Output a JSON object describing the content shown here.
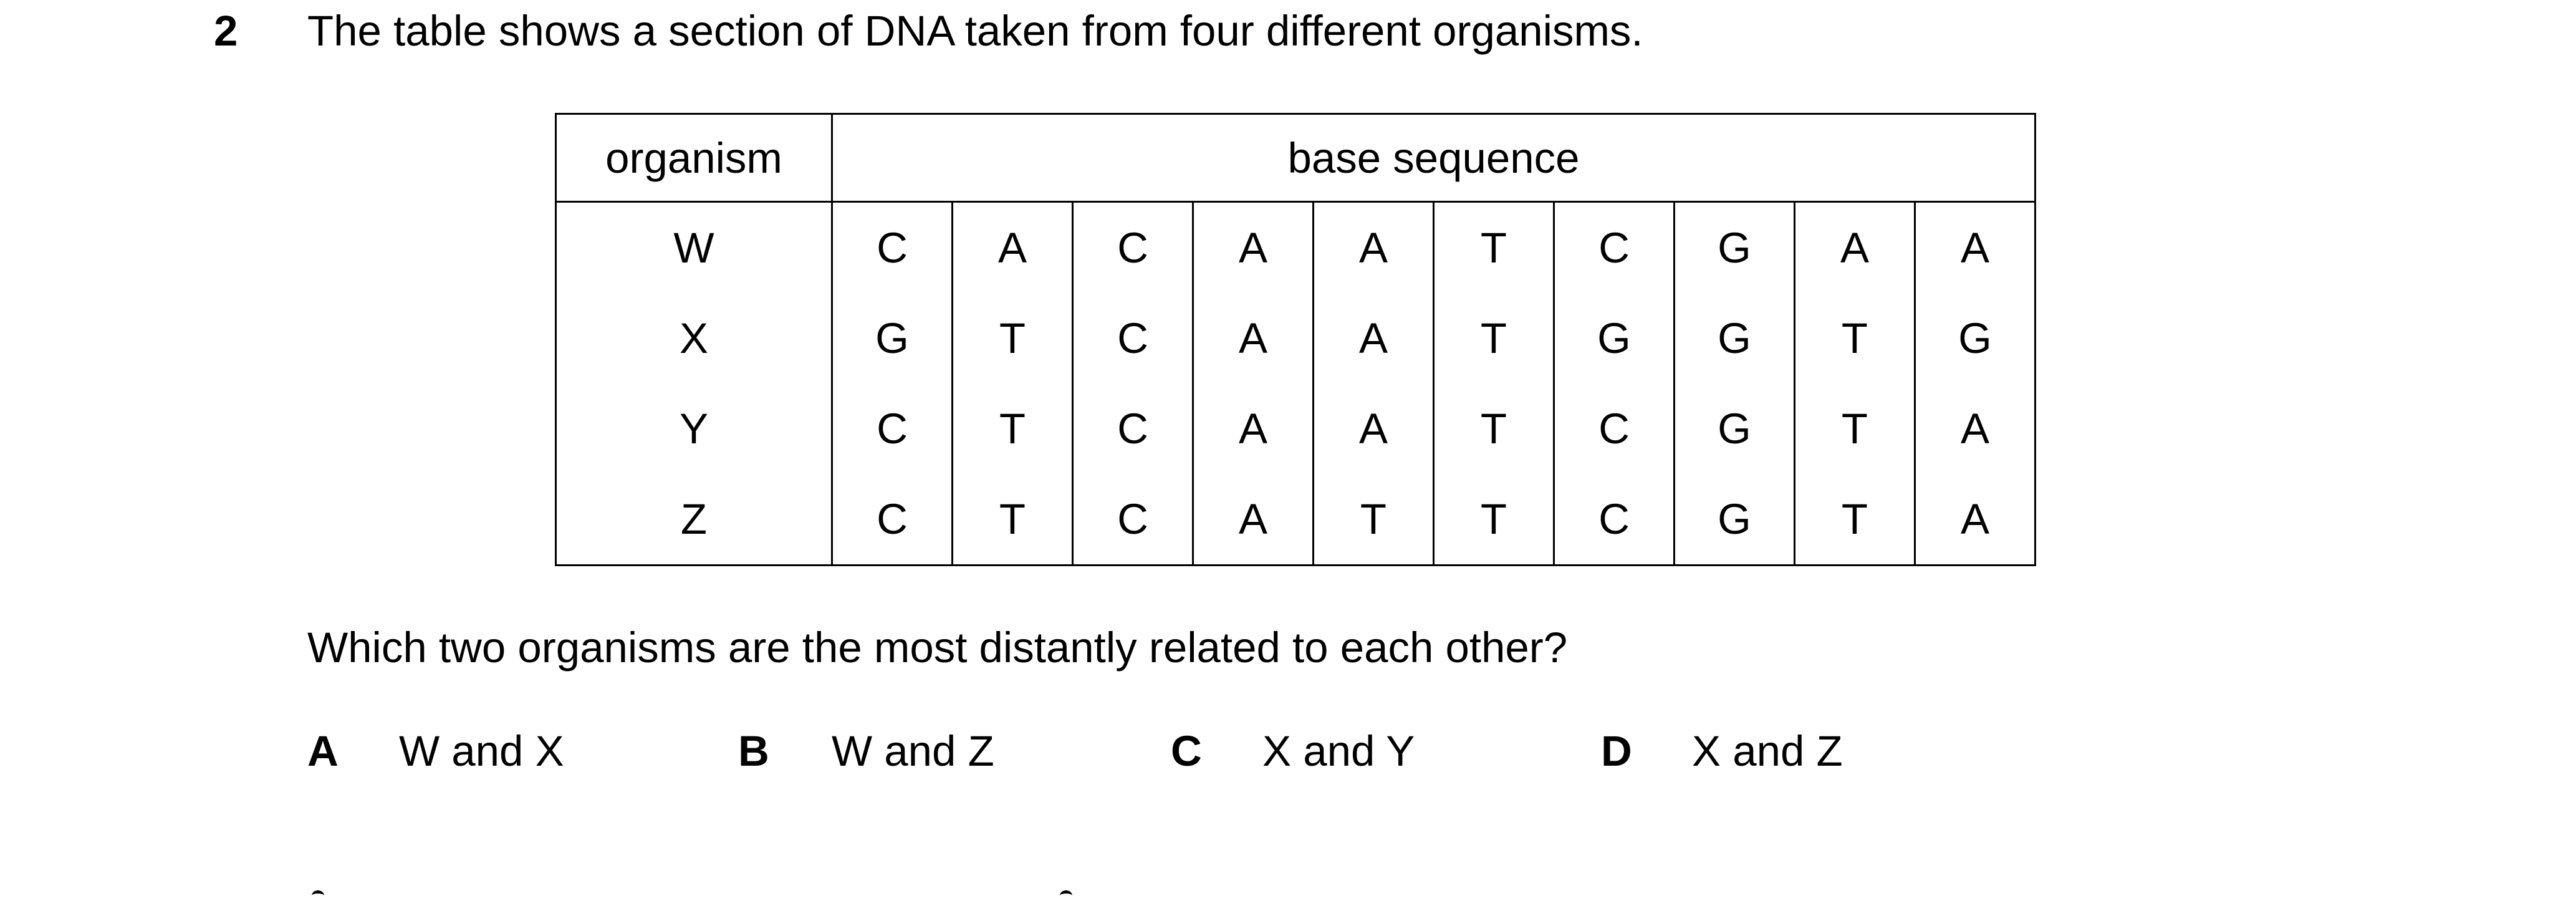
{
  "question": {
    "number": "2",
    "stem": "The table shows a section of DNA taken from four different organisms.",
    "prompt": "Which two organisms are the most distantly related to each other?"
  },
  "table": {
    "headers": {
      "organism": "organism",
      "base_sequence": "base sequence"
    },
    "rows": [
      {
        "organism": "W",
        "bases": [
          "C",
          "A",
          "C",
          "A",
          "A",
          "T",
          "C",
          "G",
          "A",
          "A"
        ]
      },
      {
        "organism": "X",
        "bases": [
          "G",
          "T",
          "C",
          "A",
          "A",
          "T",
          "G",
          "G",
          "T",
          "G"
        ]
      },
      {
        "organism": "Y",
        "bases": [
          "C",
          "T",
          "C",
          "A",
          "A",
          "T",
          "C",
          "G",
          "T",
          "A"
        ]
      },
      {
        "organism": "Z",
        "bases": [
          "C",
          "T",
          "C",
          "A",
          "T",
          "T",
          "C",
          "G",
          "T",
          "A"
        ]
      }
    ]
  },
  "options": [
    {
      "letter": "A",
      "text": "W and X"
    },
    {
      "letter": "B",
      "text": "W and Z"
    },
    {
      "letter": "C",
      "text": "X and Y"
    },
    {
      "letter": "D",
      "text": "X and Z"
    }
  ]
}
